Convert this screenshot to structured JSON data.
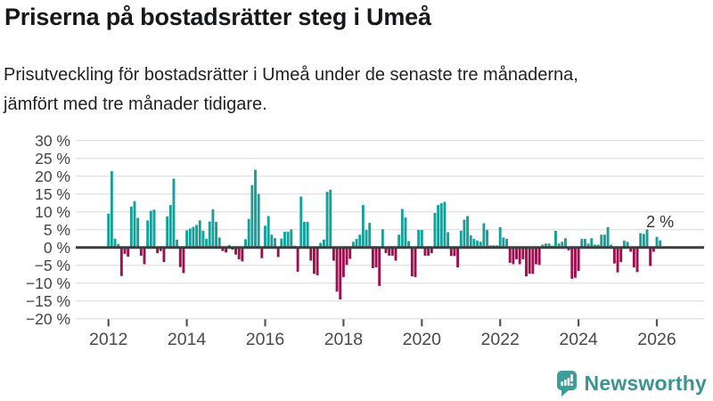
{
  "header": {
    "title": "Priserna på bostadsrätter steg i Umeå",
    "subtitle_lines": [
      "Prisutveckling för bostadsrätter i Umeå under de senaste tre månaderna,",
      "jämfört med tre månader tidigare."
    ]
  },
  "chart_data": {
    "type": "bar",
    "title": "Prisutveckling för bostadsrätter i Umeå",
    "unit": "%",
    "frequency": "monthly",
    "start_month": "2012-01",
    "end_month": "2026-02",
    "values": [
      9.5,
      21.4,
      2.5,
      1.0,
      -8.0,
      -1.8,
      -2.6,
      11.5,
      13.0,
      8.3,
      -2.3,
      -4.7,
      7.6,
      10.3,
      10.6,
      -1.6,
      -1.0,
      -4.1,
      8.7,
      11.9,
      19.3,
      2.2,
      -5.5,
      -7.2,
      4.8,
      5.3,
      5.8,
      6.3,
      7.6,
      4.7,
      2.4,
      7.3,
      10.7,
      7.2,
      2.8,
      -1.0,
      -1.4,
      0.7,
      -0.6,
      -2.0,
      -3.3,
      -3.9,
      2.3,
      8.0,
      17.5,
      21.8,
      15.0,
      -3.0,
      6.1,
      8.8,
      3.6,
      2.6,
      -2.7,
      2.5,
      4.4,
      4.4,
      5.1,
      0.5,
      -6.8,
      14.3,
      7.2,
      7.2,
      -3.7,
      -7.4,
      -7.8,
      1.3,
      2.2,
      15.6,
      16.2,
      -3.7,
      -12.4,
      -14.6,
      -8.3,
      -4.9,
      -3.2,
      1.6,
      2.4,
      3.6,
      11.9,
      4.9,
      6.9,
      -5.8,
      -5.6,
      -10.8,
      5.1,
      -1.6,
      -2.3,
      -2.3,
      -3.7,
      3.6,
      10.8,
      8.4,
      1.8,
      -8.1,
      -8.3,
      4.9,
      4.9,
      -2.3,
      -2.3,
      -1.6,
      9.7,
      11.9,
      12.4,
      12.8,
      4.3,
      -2.4,
      -2.4,
      -5.6,
      4.7,
      7.8,
      8.8,
      3.4,
      2.4,
      1.9,
      1.6,
      6.8,
      4.9,
      0.6,
      0.6,
      0.6,
      5.7,
      2.8,
      2.4,
      -4.3,
      -4.7,
      -3.3,
      -4.7,
      -3.3,
      -8.1,
      -7.4,
      -7.4,
      -4.7,
      -4.9,
      0.8,
      1.1,
      1.1,
      0.5,
      4.7,
      1.1,
      1.6,
      2.6,
      -0.8,
      -8.8,
      -8.5,
      -6.6,
      2.4,
      2.4,
      1.1,
      2.6,
      0.8,
      0.8,
      3.6,
      3.6,
      5.7,
      0.8,
      -4.5,
      -7.0,
      -4.1,
      1.9,
      1.6,
      -1.2,
      -5.6,
      -6.9,
      4.0,
      3.8,
      5.0,
      -5.2,
      -1.2,
      3.0,
      2.0
    ],
    "x_tick_labels": [
      "2012",
      "2014",
      "2016",
      "2018",
      "2020",
      "2022",
      "2024",
      "2026"
    ],
    "y_ticks": [
      30,
      25,
      20,
      15,
      10,
      5,
      0,
      -5,
      -10,
      -15,
      -20
    ],
    "y_tick_labels": [
      "30 %",
      "25 %",
      "20 %",
      "15 %",
      "10 %",
      "5 %",
      "0 %",
      "−5 %",
      "−10 %",
      "−15 %",
      "−20 %"
    ],
    "ylim": [
      -20,
      30
    ],
    "grid": true,
    "legend": "none",
    "annotation": {
      "text": "2 %",
      "value": 2
    },
    "colors": {
      "positive": "#17a09a",
      "negative": "#9d104f",
      "grid": "#e3e3e3",
      "zero_line": "#3d3d3d",
      "axis_text": "#454545",
      "annotation_text": "#333333"
    }
  },
  "footer": {
    "brand": "Newsworthy",
    "brand_color": "#3a948f",
    "logo_icon": "bar-chart-speech-bubble"
  }
}
